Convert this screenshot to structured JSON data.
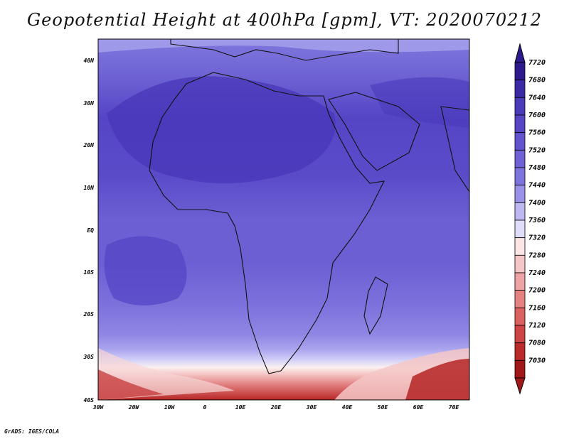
{
  "title": "Geopotential Height at 400hPa [gpm], VT: 2020070212",
  "footer": "GrADS: IGES/COLA",
  "map": {
    "lat_labels": [
      "40N",
      "30N",
      "20N",
      "10N",
      "EQ",
      "10S",
      "20S",
      "30S",
      "40S"
    ],
    "lon_labels": [
      "30W",
      "20W",
      "10W",
      "0",
      "10E",
      "20E",
      "30E",
      "40E",
      "50E",
      "60E",
      "70E"
    ]
  },
  "colorbar": {
    "levels": [
      "7720",
      "7680",
      "7640",
      "7600",
      "7560",
      "7520",
      "7480",
      "7440",
      "7400",
      "7360",
      "7320",
      "7280",
      "7240",
      "7200",
      "7160",
      "7120",
      "7080",
      "7030"
    ],
    "colors": [
      "#2e1a8c",
      "#3b2aa6",
      "#4a3bbb",
      "#5646c6",
      "#6253cf",
      "#6f62d6",
      "#7e74de",
      "#9a92e8",
      "#bdb8f2",
      "#e0ddfa",
      "#fbe5e5",
      "#f5c6c6",
      "#eea4a4",
      "#e68282",
      "#dc6262",
      "#cf4444",
      "#bb2b2b",
      "#a01818"
    ]
  }
}
